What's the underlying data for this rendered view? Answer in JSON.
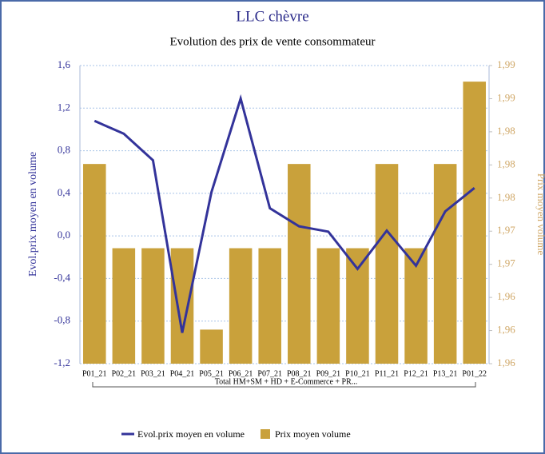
{
  "chart_data": {
    "type": "combo",
    "title": "LLC chèvre",
    "subtitle": "Evolution des prix de vente consommateur",
    "y_label": "Evol.prix moyen en volume",
    "y2_label": "Prix moyen volume",
    "x_group_label": "Total HM+SM + HD + E-Commerce + PR...",
    "categories": [
      "P01_21",
      "P02_21",
      "P03_21",
      "P04_21",
      "P05_21",
      "P06_21",
      "P07_21",
      "P08_21",
      "P09_21",
      "P10_21",
      "P11_21",
      "P12_21",
      "P13_21",
      "P01_22"
    ],
    "ylim": [
      -1.2,
      1.6
    ],
    "yticks": [
      {
        "value": -1.2,
        "label": "-1,2"
      },
      {
        "value": -0.8,
        "label": "-0,8"
      },
      {
        "value": -0.4,
        "label": "-0,4"
      },
      {
        "value": 0,
        "label": "0,0"
      },
      {
        "value": 0.4,
        "label": "0,4"
      },
      {
        "value": 0.8,
        "label": "0,8"
      },
      {
        "value": 1.2,
        "label": "1,2"
      },
      {
        "value": 1.6,
        "label": "1,6"
      }
    ],
    "y2lim": [
      1.9575,
      1.989
    ],
    "y2ticks": [
      {
        "value": 1.9575,
        "label": "1,96"
      },
      {
        "value": 1.961,
        "label": "1,96"
      },
      {
        "value": 1.9645,
        "label": "1,96"
      },
      {
        "value": 1.968,
        "label": "1,97"
      },
      {
        "value": 1.9715,
        "label": "1,97"
      },
      {
        "value": 1.975,
        "label": "1,98"
      },
      {
        "value": 1.9785,
        "label": "1,98"
      },
      {
        "value": 1.982,
        "label": "1,98"
      },
      {
        "value": 1.9855,
        "label": "1,99"
      },
      {
        "value": 1.989,
        "label": "1,99"
      }
    ],
    "grid": true,
    "series": [
      {
        "name": "Evol.prix moyen en volume",
        "type": "line",
        "axis": "y",
        "color": "#33339a",
        "values": [
          1.08,
          0.96,
          0.71,
          -0.91,
          0.41,
          1.29,
          0.26,
          0.09,
          0.04,
          -0.31,
          0.05,
          -0.28,
          0.23,
          0.45
        ]
      },
      {
        "name": "Prix moyen volume",
        "type": "bar",
        "axis": "y2",
        "color": "#c9a13b",
        "values": [
          1.9786,
          1.9697,
          1.9697,
          1.9697,
          1.9611,
          1.9697,
          1.9697,
          1.9786,
          1.9697,
          1.9697,
          1.9786,
          1.9697,
          1.9786,
          1.9873
        ]
      }
    ]
  }
}
